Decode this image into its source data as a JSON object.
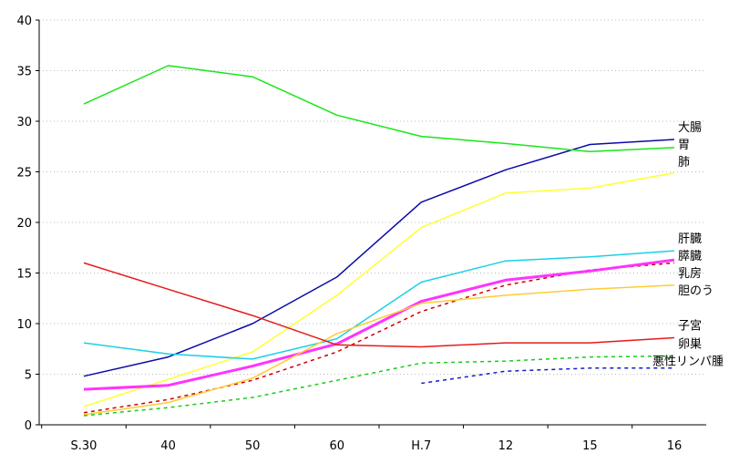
{
  "chart_data": {
    "type": "line",
    "title": "",
    "xlabel": "",
    "ylabel": "",
    "categories": [
      "S.30",
      "40",
      "50",
      "60",
      "H.7",
      "12",
      "15",
      "16"
    ],
    "ylim": [
      0,
      40
    ],
    "yticks": [
      0,
      5,
      10,
      15,
      20,
      25,
      30,
      35,
      40
    ],
    "grid": "horizontal-dotted",
    "legend": "labels-at-line-ends",
    "series": [
      {
        "name": "大腸",
        "color": "#0a0aa8",
        "dash": "solid",
        "width": 1.5,
        "values": [
          4.8,
          6.7,
          10.0,
          14.6,
          22.0,
          25.2,
          27.7,
          28.2
        ]
      },
      {
        "name": "胃",
        "color": "#19e619",
        "dash": "solid",
        "width": 1.5,
        "values": [
          31.7,
          35.5,
          34.4,
          30.6,
          28.5,
          27.8,
          27.0,
          27.4
        ]
      },
      {
        "name": "肺",
        "color": "#ffff33",
        "dash": "solid",
        "width": 1.5,
        "values": [
          1.8,
          4.5,
          7.2,
          12.8,
          19.5,
          22.9,
          23.4,
          24.9
        ]
      },
      {
        "name": "肝臓",
        "color": "#1ad0e6",
        "dash": "solid",
        "width": 1.5,
        "values": [
          8.1,
          7.0,
          6.5,
          8.5,
          14.1,
          16.2,
          16.6,
          17.2
        ]
      },
      {
        "name": "乳房",
        "color": "#cc0000",
        "dash": "dotted",
        "width": 1.5,
        "values": [
          1.2,
          2.5,
          4.4,
          7.2,
          11.2,
          13.8,
          15.3,
          16.0
        ]
      },
      {
        "name": "膵臓",
        "color": "#ff33ff",
        "dash": "solid",
        "width": 3,
        "values": [
          3.5,
          3.9,
          5.8,
          8.0,
          12.2,
          14.3,
          15.2,
          16.3
        ]
      },
      {
        "name": "胆のう",
        "color": "#ffcc33",
        "dash": "solid",
        "width": 1.5,
        "values": [
          1.0,
          2.2,
          4.6,
          9.0,
          12.0,
          12.8,
          13.4,
          13.8
        ]
      },
      {
        "name": "子宮",
        "color": "#e61a1a",
        "dash": "solid",
        "width": 1.5,
        "values": [
          16.0,
          13.4,
          10.8,
          7.9,
          7.7,
          8.1,
          8.1,
          8.6
        ]
      },
      {
        "name": "卵巣",
        "color": "#19cc19",
        "dash": "dotted",
        "width": 1.5,
        "values": [
          0.9,
          1.7,
          2.7,
          4.4,
          6.1,
          6.3,
          6.7,
          6.8
        ]
      },
      {
        "name": "悪性リンパ腫",
        "color": "#1a1acc",
        "dash": "dotted",
        "width": 1.5,
        "values": [
          null,
          null,
          null,
          null,
          4.1,
          5.3,
          5.6,
          5.6
        ]
      }
    ]
  }
}
